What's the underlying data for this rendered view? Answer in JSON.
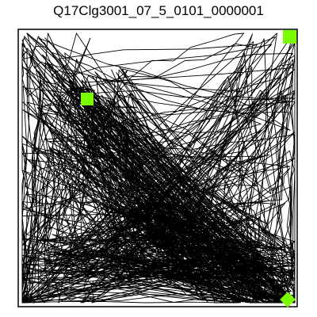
{
  "title": "Q17Clg3001_07_5_0101_0000001",
  "colors": {
    "background": "#ffffff",
    "path": "#000000",
    "border": "#000000",
    "marker": "#7cfc00"
  },
  "markers": [
    {
      "name": "top-right-corner-marker",
      "shape": "square"
    },
    {
      "name": "object-marker",
      "shape": "square"
    },
    {
      "name": "bottom-right-corner-marker",
      "shape": "diamond"
    }
  ]
}
